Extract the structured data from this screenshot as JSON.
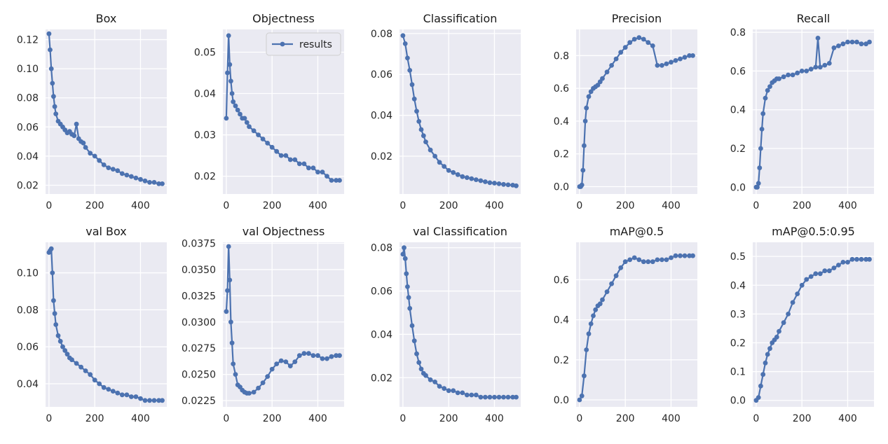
{
  "chart_data": [
    {
      "type": "line",
      "title": "Box",
      "xlim": [
        -15,
        515
      ],
      "xticks": [
        0,
        200,
        400
      ],
      "ylim": [
        0.014,
        0.127
      ],
      "yticks": [
        0.02,
        0.04,
        0.06,
        0.08,
        0.1,
        0.12
      ],
      "ytick_labels": [
        "0.02",
        "0.04",
        "0.06",
        "0.08",
        "0.10",
        "0.12"
      ],
      "grid": true,
      "series": [
        {
          "color": "#4c72b0",
          "x": [
            0,
            5,
            10,
            15,
            20,
            25,
            30,
            40,
            50,
            60,
            70,
            80,
            90,
            100,
            110,
            120,
            130,
            140,
            150,
            160,
            180,
            200,
            220,
            240,
            260,
            280,
            300,
            320,
            340,
            360,
            380,
            400,
            420,
            440,
            460,
            480,
            495
          ],
          "y": [
            0.124,
            0.113,
            0.1,
            0.09,
            0.081,
            0.074,
            0.069,
            0.064,
            0.062,
            0.06,
            0.058,
            0.056,
            0.057,
            0.055,
            0.054,
            0.062,
            0.052,
            0.05,
            0.049,
            0.046,
            0.042,
            0.04,
            0.037,
            0.034,
            0.032,
            0.031,
            0.03,
            0.028,
            0.027,
            0.026,
            0.025,
            0.024,
            0.023,
            0.022,
            0.022,
            0.021,
            0.021
          ]
        }
      ]
    },
    {
      "type": "line",
      "title": "Objectness",
      "xlim": [
        -15,
        515
      ],
      "xticks": [
        0,
        200,
        400
      ],
      "ylim": [
        0.0157,
        0.0555
      ],
      "yticks": [
        0.02,
        0.03,
        0.04,
        0.05
      ],
      "ytick_labels": [
        "0.02",
        "0.03",
        "0.04",
        "0.05"
      ],
      "grid": true,
      "legend": {
        "location": "upper-right",
        "entries": [
          "results"
        ]
      },
      "series": [
        {
          "name": "results",
          "color": "#4c72b0",
          "x": [
            0,
            5,
            10,
            15,
            20,
            25,
            30,
            40,
            50,
            60,
            70,
            80,
            90,
            100,
            120,
            140,
            160,
            180,
            200,
            220,
            240,
            260,
            280,
            300,
            320,
            340,
            360,
            380,
            400,
            420,
            440,
            460,
            480,
            495
          ],
          "y": [
            0.034,
            0.045,
            0.054,
            0.047,
            0.043,
            0.04,
            0.038,
            0.037,
            0.036,
            0.035,
            0.034,
            0.034,
            0.033,
            0.032,
            0.031,
            0.03,
            0.029,
            0.028,
            0.027,
            0.026,
            0.025,
            0.025,
            0.024,
            0.024,
            0.023,
            0.023,
            0.022,
            0.022,
            0.021,
            0.021,
            0.02,
            0.019,
            0.019,
            0.019
          ]
        }
      ]
    },
    {
      "type": "line",
      "title": "Classification",
      "xlim": [
        -15,
        515
      ],
      "xticks": [
        0,
        200,
        400
      ],
      "ylim": [
        0.0015,
        0.082
      ],
      "yticks": [
        0.02,
        0.04,
        0.06,
        0.08
      ],
      "ytick_labels": [
        "0.02",
        "0.04",
        "0.06",
        "0.08"
      ],
      "grid": true,
      "series": [
        {
          "color": "#4c72b0",
          "x": [
            0,
            10,
            20,
            30,
            40,
            50,
            60,
            70,
            80,
            90,
            100,
            120,
            140,
            160,
            180,
            200,
            220,
            240,
            260,
            280,
            300,
            320,
            340,
            360,
            380,
            400,
            420,
            440,
            460,
            480,
            495
          ],
          "y": [
            0.079,
            0.075,
            0.068,
            0.062,
            0.055,
            0.048,
            0.042,
            0.037,
            0.033,
            0.03,
            0.027,
            0.023,
            0.02,
            0.017,
            0.015,
            0.013,
            0.012,
            0.011,
            0.01,
            0.0095,
            0.009,
            0.0085,
            0.008,
            0.0075,
            0.007,
            0.0068,
            0.0065,
            0.0062,
            0.006,
            0.0058,
            0.0055
          ]
        }
      ]
    },
    {
      "type": "line",
      "title": "Precision",
      "xlim": [
        -15,
        515
      ],
      "xticks": [
        0,
        200,
        400
      ],
      "ylim": [
        -0.045,
        0.96
      ],
      "yticks": [
        0.0,
        0.2,
        0.4,
        0.6,
        0.8
      ],
      "ytick_labels": [
        "0.0",
        "0.2",
        "0.4",
        "0.6",
        "0.8"
      ],
      "grid": true,
      "series": [
        {
          "color": "#4c72b0",
          "x": [
            0,
            5,
            10,
            15,
            20,
            25,
            30,
            40,
            50,
            60,
            70,
            80,
            90,
            100,
            120,
            140,
            160,
            180,
            200,
            220,
            240,
            260,
            280,
            300,
            320,
            340,
            360,
            380,
            400,
            420,
            440,
            460,
            480,
            495
          ],
          "y": [
            0.0,
            0.0,
            0.01,
            0.1,
            0.25,
            0.4,
            0.48,
            0.55,
            0.58,
            0.6,
            0.61,
            0.62,
            0.64,
            0.66,
            0.7,
            0.74,
            0.78,
            0.82,
            0.85,
            0.88,
            0.9,
            0.91,
            0.9,
            0.88,
            0.86,
            0.74,
            0.74,
            0.75,
            0.76,
            0.77,
            0.78,
            0.79,
            0.8,
            0.8
          ]
        }
      ]
    },
    {
      "type": "line",
      "title": "Recall",
      "xlim": [
        -15,
        515
      ],
      "xticks": [
        0,
        200,
        400
      ],
      "ylim": [
        -0.035,
        0.815
      ],
      "yticks": [
        0.0,
        0.2,
        0.4,
        0.6,
        0.8
      ],
      "ytick_labels": [
        "0.0",
        "0.2",
        "0.4",
        "0.6",
        "0.8"
      ],
      "grid": true,
      "series": [
        {
          "color": "#4c72b0",
          "x": [
            0,
            5,
            10,
            15,
            20,
            25,
            30,
            40,
            50,
            60,
            70,
            80,
            90,
            100,
            120,
            140,
            160,
            180,
            200,
            220,
            240,
            260,
            270,
            280,
            300,
            320,
            340,
            360,
            380,
            400,
            420,
            440,
            460,
            480,
            495
          ],
          "y": [
            0.0,
            0.0,
            0.02,
            0.1,
            0.2,
            0.3,
            0.38,
            0.46,
            0.5,
            0.52,
            0.54,
            0.55,
            0.56,
            0.56,
            0.57,
            0.58,
            0.58,
            0.59,
            0.6,
            0.6,
            0.61,
            0.62,
            0.77,
            0.62,
            0.63,
            0.64,
            0.72,
            0.73,
            0.74,
            0.75,
            0.75,
            0.75,
            0.74,
            0.74,
            0.75
          ]
        }
      ]
    },
    {
      "type": "line",
      "title": "val Box",
      "xlim": [
        -15,
        515
      ],
      "xticks": [
        0,
        200,
        400
      ],
      "ylim": [
        0.0275,
        0.1165
      ],
      "yticks": [
        0.04,
        0.06,
        0.08,
        0.1
      ],
      "ytick_labels": [
        "0.04",
        "0.06",
        "0.08",
        "0.10"
      ],
      "grid": true,
      "series": [
        {
          "color": "#4c72b0",
          "x": [
            0,
            5,
            10,
            15,
            20,
            25,
            30,
            40,
            50,
            60,
            70,
            80,
            90,
            100,
            120,
            140,
            160,
            180,
            200,
            220,
            240,
            260,
            280,
            300,
            320,
            340,
            360,
            380,
            400,
            420,
            440,
            460,
            480,
            495
          ],
          "y": [
            0.111,
            0.112,
            0.113,
            0.1,
            0.085,
            0.078,
            0.072,
            0.066,
            0.063,
            0.06,
            0.058,
            0.056,
            0.054,
            0.053,
            0.051,
            0.049,
            0.047,
            0.045,
            0.042,
            0.04,
            0.038,
            0.037,
            0.036,
            0.035,
            0.034,
            0.034,
            0.033,
            0.033,
            0.032,
            0.031,
            0.031,
            0.031,
            0.031,
            0.031
          ]
        }
      ]
    },
    {
      "type": "line",
      "title": "val Objectness",
      "xlim": [
        -15,
        515
      ],
      "xticks": [
        0,
        200,
        400
      ],
      "ylim": [
        0.0219,
        0.0376
      ],
      "yticks": [
        0.0225,
        0.025,
        0.0275,
        0.03,
        0.0325,
        0.035,
        0.0375
      ],
      "ytick_labels": [
        "0.0225",
        "0.0250",
        "0.0275",
        "0.0300",
        "0.0325",
        "0.0350",
        "0.0375"
      ],
      "grid": true,
      "series": [
        {
          "color": "#4c72b0",
          "x": [
            0,
            5,
            10,
            15,
            20,
            25,
            30,
            40,
            50,
            60,
            70,
            80,
            90,
            100,
            120,
            140,
            160,
            180,
            200,
            220,
            240,
            260,
            280,
            300,
            320,
            340,
            360,
            380,
            400,
            420,
            440,
            460,
            480,
            495
          ],
          "y": [
            0.031,
            0.033,
            0.0372,
            0.034,
            0.03,
            0.028,
            0.026,
            0.025,
            0.024,
            0.0238,
            0.0235,
            0.0233,
            0.0232,
            0.0232,
            0.0233,
            0.0237,
            0.0242,
            0.0248,
            0.0255,
            0.026,
            0.0263,
            0.0262,
            0.0258,
            0.0262,
            0.0268,
            0.027,
            0.027,
            0.0268,
            0.0268,
            0.0265,
            0.0265,
            0.0267,
            0.0268,
            0.0268
          ]
        }
      ]
    },
    {
      "type": "line",
      "title": "val Classification",
      "xlim": [
        -15,
        515
      ],
      "xticks": [
        0,
        200,
        400
      ],
      "ylim": [
        0.0065,
        0.0825
      ],
      "yticks": [
        0.02,
        0.04,
        0.06,
        0.08
      ],
      "ytick_labels": [
        "0.02",
        "0.04",
        "0.06",
        "0.08"
      ],
      "grid": true,
      "series": [
        {
          "color": "#4c72b0",
          "x": [
            0,
            5,
            10,
            15,
            20,
            25,
            30,
            40,
            50,
            60,
            70,
            80,
            90,
            100,
            120,
            140,
            160,
            180,
            200,
            220,
            240,
            260,
            280,
            300,
            320,
            340,
            360,
            380,
            400,
            420,
            440,
            460,
            480,
            495
          ],
          "y": [
            0.077,
            0.08,
            0.075,
            0.068,
            0.062,
            0.057,
            0.052,
            0.044,
            0.037,
            0.031,
            0.027,
            0.024,
            0.022,
            0.021,
            0.019,
            0.018,
            0.016,
            0.015,
            0.014,
            0.014,
            0.013,
            0.013,
            0.012,
            0.012,
            0.012,
            0.011,
            0.011,
            0.011,
            0.011,
            0.011,
            0.011,
            0.011,
            0.011,
            0.011
          ]
        }
      ]
    },
    {
      "type": "line",
      "title": "mAP@0.5",
      "xlim": [
        -15,
        515
      ],
      "xticks": [
        0,
        200,
        400
      ],
      "ylim": [
        -0.035,
        0.787
      ],
      "yticks": [
        0.0,
        0.2,
        0.4,
        0.6
      ],
      "ytick_labels": [
        "0.0",
        "0.2",
        "0.4",
        "0.6"
      ],
      "grid": true,
      "series": [
        {
          "color": "#4c72b0",
          "x": [
            0,
            10,
            20,
            30,
            40,
            50,
            60,
            70,
            80,
            90,
            100,
            120,
            140,
            160,
            180,
            200,
            220,
            240,
            260,
            280,
            300,
            320,
            340,
            360,
            380,
            400,
            420,
            440,
            460,
            480,
            495
          ],
          "y": [
            0.0,
            0.02,
            0.12,
            0.25,
            0.33,
            0.38,
            0.42,
            0.45,
            0.47,
            0.48,
            0.5,
            0.54,
            0.58,
            0.62,
            0.66,
            0.69,
            0.7,
            0.71,
            0.7,
            0.69,
            0.69,
            0.69,
            0.7,
            0.7,
            0.7,
            0.71,
            0.72,
            0.72,
            0.72,
            0.72,
            0.72
          ]
        }
      ]
    },
    {
      "type": "line",
      "title": "mAP@0.5:0.95",
      "xlim": [
        -15,
        515
      ],
      "xticks": [
        0,
        200,
        400
      ],
      "ylim": [
        -0.0225,
        0.549
      ],
      "yticks": [
        0.0,
        0.1,
        0.2,
        0.3,
        0.4,
        0.5
      ],
      "ytick_labels": [
        "0.0",
        "0.1",
        "0.2",
        "0.3",
        "0.4",
        "0.5"
      ],
      "grid": true,
      "series": [
        {
          "color": "#4c72b0",
          "x": [
            0,
            10,
            20,
            30,
            40,
            50,
            60,
            70,
            80,
            90,
            100,
            120,
            140,
            160,
            180,
            200,
            220,
            240,
            260,
            280,
            300,
            320,
            340,
            360,
            380,
            400,
            420,
            440,
            460,
            480,
            495
          ],
          "y": [
            0.0,
            0.01,
            0.05,
            0.09,
            0.13,
            0.16,
            0.18,
            0.2,
            0.21,
            0.22,
            0.24,
            0.27,
            0.3,
            0.34,
            0.37,
            0.4,
            0.42,
            0.43,
            0.44,
            0.44,
            0.45,
            0.45,
            0.46,
            0.47,
            0.48,
            0.48,
            0.49,
            0.49,
            0.49,
            0.49,
            0.49
          ]
        }
      ]
    }
  ]
}
